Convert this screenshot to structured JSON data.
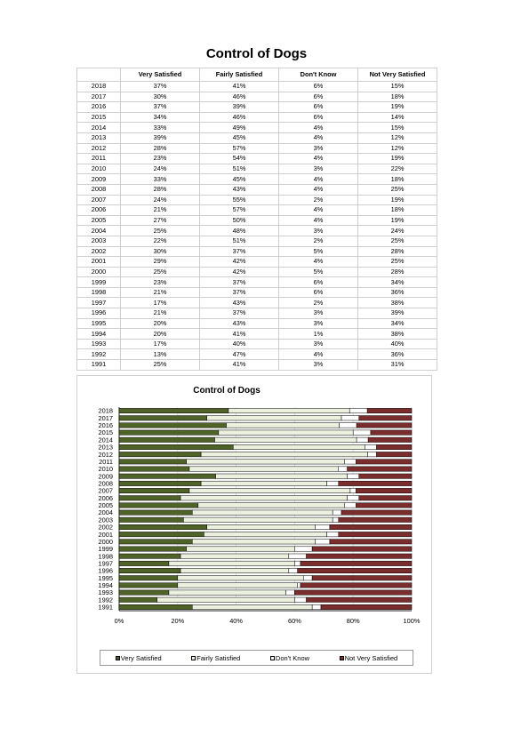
{
  "title": "Control of Dogs",
  "table": {
    "corner": "",
    "headers": [
      "Very Satisfied",
      "Fairly Satisfied",
      "Don't Know",
      "Not Very Satisfied"
    ]
  },
  "colors": {
    "very_satisfied": "#4f6228",
    "fairly_satisfied": "#ebf1de",
    "dont_know": "#ffffff",
    "not_very_satisfied": "#7b2c2c"
  },
  "chart_data": {
    "type": "bar",
    "orientation": "horizontal",
    "stacked": "100%",
    "title": "Control of Dogs",
    "categories": [
      "2018",
      "2017",
      "2016",
      "2015",
      "2014",
      "2013",
      "2012",
      "2011",
      "2010",
      "2009",
      "2008",
      "2007",
      "2006",
      "2005",
      "2004",
      "2003",
      "2002",
      "2001",
      "2000",
      "1999",
      "1998",
      "1997",
      "1996",
      "1995",
      "1994",
      "1993",
      "1992",
      "1991"
    ],
    "series": [
      {
        "name": "Very Satisfied",
        "values": [
          37,
          30,
          37,
          34,
          33,
          39,
          28,
          23,
          24,
          33,
          28,
          24,
          21,
          27,
          25,
          22,
          30,
          29,
          25,
          23,
          21,
          17,
          21,
          20,
          20,
          17,
          13,
          25
        ]
      },
      {
        "name": "Fairly Satisfied",
        "values": [
          41,
          46,
          39,
          46,
          49,
          45,
          57,
          54,
          51,
          45,
          43,
          55,
          57,
          50,
          48,
          51,
          37,
          42,
          42,
          37,
          37,
          43,
          37,
          43,
          41,
          40,
          47,
          41
        ]
      },
      {
        "name": "Don't Know",
        "values": [
          6,
          6,
          6,
          6,
          4,
          4,
          3,
          4,
          3,
          4,
          4,
          2,
          4,
          4,
          3,
          2,
          5,
          4,
          5,
          6,
          6,
          2,
          3,
          3,
          1,
          3,
          4,
          3
        ]
      },
      {
        "name": "Not Very Satisfied",
        "values": [
          15,
          18,
          19,
          14,
          15,
          12,
          12,
          19,
          22,
          18,
          25,
          19,
          18,
          19,
          24,
          25,
          28,
          25,
          28,
          34,
          36,
          38,
          39,
          34,
          38,
          40,
          36,
          31
        ]
      }
    ],
    "xlim": [
      0,
      100
    ],
    "x_ticks": [
      "0%",
      "20%",
      "40%",
      "60%",
      "80%",
      "100%"
    ],
    "xlabel": "",
    "ylabel": "",
    "grid": true,
    "legend_position": "bottom"
  }
}
